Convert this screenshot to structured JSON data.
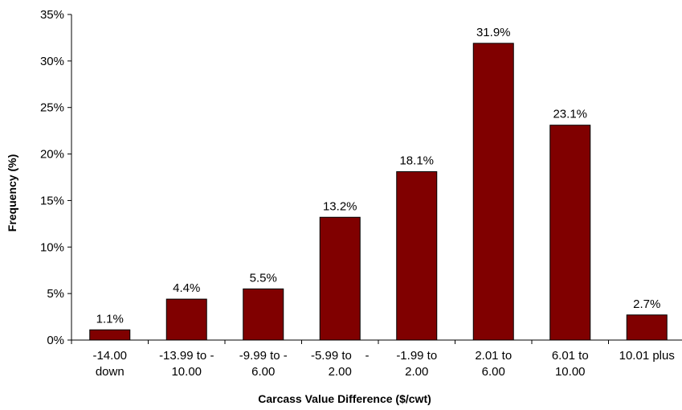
{
  "chart_data": {
    "type": "bar",
    "categories": [
      [
        "-14.00",
        "down"
      ],
      [
        "-13.99 to -",
        "10.00"
      ],
      [
        "-9.99 to -",
        "6.00"
      ],
      [
        "-5.99 to    -",
        "2.00"
      ],
      [
        "-1.99 to",
        "2.00"
      ],
      [
        "2.01 to",
        "6.00"
      ],
      [
        "6.01 to",
        "10.00"
      ],
      [
        "10.01 plus"
      ]
    ],
    "values": [
      1.1,
      4.4,
      5.5,
      13.2,
      18.1,
      31.9,
      23.1,
      2.7
    ],
    "data_labels": [
      "1.1%",
      "4.4%",
      "5.5%",
      "13.2%",
      "18.1%",
      "31.9%",
      "23.1%",
      "2.7%"
    ],
    "xlabel": "Carcass Value Difference ($/cwt)",
    "ylabel": "Frequency (%)",
    "ylim": [
      0,
      35
    ],
    "yticks": [
      0,
      5,
      10,
      15,
      20,
      25,
      30,
      35
    ],
    "ytick_labels": [
      "0%",
      "5%",
      "10%",
      "15%",
      "20%",
      "25%",
      "30%",
      "35%"
    ],
    "grid": false,
    "legend": "none",
    "bar_color": "#800000"
  }
}
